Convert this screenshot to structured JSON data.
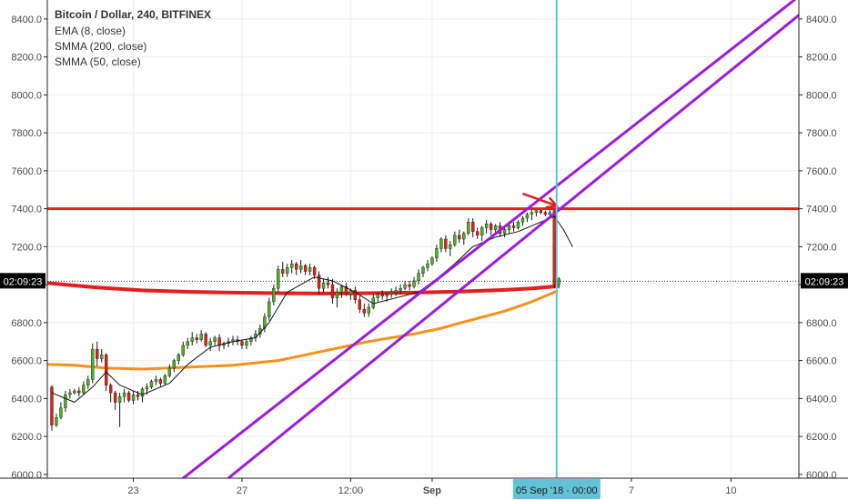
{
  "chart_data": {
    "type": "candlestick",
    "title": "Bitcoin / Dollar, 240, BITFINEX",
    "indicators": [
      "EMA (8, close)",
      "SMMA (200, close)",
      "SMMA (50, close)"
    ],
    "y_ticks": [
      6000,
      6200,
      6400,
      6600,
      6800,
      7000,
      7200,
      7400,
      7600,
      7800,
      8000,
      8200,
      8400
    ],
    "y_tick_labels": [
      "6000.0",
      "6200.0",
      "6400.0",
      "6600.0",
      "6800.0",
      "7000.0",
      "7200.0",
      "7400.0",
      "7600.0",
      "7800.0",
      "8000.0",
      "8200.0",
      "8400.0"
    ],
    "ylim": [
      5980,
      8500
    ],
    "x_ticks": [
      {
        "bar": 18,
        "label": "23"
      },
      {
        "bar": 42,
        "label": "27"
      },
      {
        "bar": 66,
        "label": "12:00"
      },
      {
        "bar": 84,
        "label": "Sep",
        "bold": true
      },
      {
        "bar": 128,
        "label": "7"
      },
      {
        "bar": 150,
        "label": "10"
      }
    ],
    "xlim": [
      -1,
      165
    ],
    "countdown_label": "02:09:23",
    "countdown_price": 7018,
    "cursor": {
      "bar": 111.5,
      "label": "05 Sep '18 · 00:00"
    },
    "horizontal_line": {
      "price": 7400,
      "color": "#ee1c1c"
    },
    "candles": [
      [
        6460,
        6470,
        6230,
        6260
      ],
      [
        6260,
        6320,
        6250,
        6300
      ],
      [
        6300,
        6380,
        6290,
        6350
      ],
      [
        6350,
        6440,
        6330,
        6420
      ],
      [
        6420,
        6450,
        6400,
        6430
      ],
      [
        6430,
        6450,
        6420,
        6440
      ],
      [
        6440,
        6460,
        6410,
        6430
      ],
      [
        6430,
        6490,
        6420,
        6470
      ],
      [
        6470,
        6520,
        6450,
        6500
      ],
      [
        6500,
        6690,
        6480,
        6660
      ],
      [
        6660,
        6700,
        6570,
        6610
      ],
      [
        6610,
        6660,
        6590,
        6630
      ],
      [
        6630,
        6640,
        6440,
        6470
      ],
      [
        6470,
        6480,
        6380,
        6430
      ],
      [
        6430,
        6440,
        6340,
        6380
      ],
      [
        6380,
        6430,
        6250,
        6410
      ],
      [
        6410,
        6450,
        6380,
        6430
      ],
      [
        6430,
        6440,
        6380,
        6390
      ],
      [
        6390,
        6440,
        6370,
        6420
      ],
      [
        6420,
        6440,
        6390,
        6410
      ],
      [
        6410,
        6460,
        6380,
        6450
      ],
      [
        6450,
        6480,
        6420,
        6460
      ],
      [
        6460,
        6500,
        6450,
        6490
      ],
      [
        6490,
        6520,
        6470,
        6500
      ],
      [
        6500,
        6510,
        6460,
        6480
      ],
      [
        6480,
        6530,
        6470,
        6520
      ],
      [
        6520,
        6580,
        6510,
        6560
      ],
      [
        6560,
        6610,
        6540,
        6600
      ],
      [
        6600,
        6640,
        6580,
        6630
      ],
      [
        6630,
        6700,
        6620,
        6680
      ],
      [
        6680,
        6720,
        6660,
        6700
      ],
      [
        6700,
        6750,
        6680,
        6720
      ],
      [
        6720,
        6740,
        6690,
        6710
      ],
      [
        6710,
        6760,
        6700,
        6740
      ],
      [
        6740,
        6750,
        6670,
        6680
      ],
      [
        6680,
        6720,
        6650,
        6700
      ],
      [
        6700,
        6730,
        6680,
        6720
      ],
      [
        6720,
        6740,
        6650,
        6680
      ],
      [
        6680,
        6700,
        6660,
        6690
      ],
      [
        6690,
        6720,
        6670,
        6700
      ],
      [
        6700,
        6730,
        6680,
        6710
      ],
      [
        6710,
        6730,
        6680,
        6700
      ],
      [
        6700,
        6710,
        6660,
        6680
      ],
      [
        6680,
        6710,
        6660,
        6700
      ],
      [
        6700,
        6730,
        6680,
        6720
      ],
      [
        6720,
        6760,
        6700,
        6740
      ],
      [
        6740,
        6790,
        6720,
        6770
      ],
      [
        6770,
        6850,
        6750,
        6830
      ],
      [
        6830,
        6930,
        6810,
        6910
      ],
      [
        6910,
        7000,
        6890,
        6980
      ],
      [
        6980,
        7100,
        6960,
        7080
      ],
      [
        7080,
        7120,
        7040,
        7060
      ],
      [
        7060,
        7110,
        7040,
        7090
      ],
      [
        7090,
        7130,
        7060,
        7110
      ],
      [
        7110,
        7120,
        7050,
        7080
      ],
      [
        7080,
        7130,
        7060,
        7100
      ],
      [
        7100,
        7110,
        7050,
        7070
      ],
      [
        7070,
        7110,
        7050,
        7090
      ],
      [
        7090,
        7100,
        7030,
        7050
      ],
      [
        7050,
        7070,
        6950,
        6980
      ],
      [
        6980,
        7030,
        6960,
        7010
      ],
      [
        7010,
        7040,
        6980,
        7000
      ],
      [
        7000,
        7030,
        6900,
        6930
      ],
      [
        6930,
        6980,
        6880,
        6960
      ],
      [
        6960,
        7000,
        6930,
        6990
      ],
      [
        6990,
        7010,
        6940,
        6950
      ],
      [
        6950,
        6980,
        6920,
        6970
      ],
      [
        6970,
        6990,
        6900,
        6920
      ],
      [
        6920,
        6940,
        6850,
        6870
      ],
      [
        6870,
        6900,
        6830,
        6850
      ],
      [
        6850,
        6900,
        6830,
        6880
      ],
      [
        6880,
        6950,
        6870,
        6930
      ],
      [
        6930,
        6960,
        6910,
        6950
      ],
      [
        6950,
        6970,
        6920,
        6940
      ],
      [
        6940,
        6960,
        6910,
        6950
      ],
      [
        6950,
        6980,
        6930,
        6960
      ],
      [
        6960,
        6990,
        6940,
        6970
      ],
      [
        6970,
        7000,
        6950,
        6980
      ],
      [
        6980,
        7020,
        6970,
        7000
      ],
      [
        7000,
        7020,
        6970,
        6990
      ],
      [
        6990,
        7040,
        6980,
        7020
      ],
      [
        7020,
        7080,
        7000,
        7060
      ],
      [
        7060,
        7100,
        7040,
        7090
      ],
      [
        7090,
        7130,
        7070,
        7110
      ],
      [
        7110,
        7150,
        7100,
        7140
      ],
      [
        7140,
        7210,
        7120,
        7190
      ],
      [
        7190,
        7250,
        7170,
        7240
      ],
      [
        7240,
        7260,
        7170,
        7190
      ],
      [
        7190,
        7230,
        7150,
        7210
      ],
      [
        7210,
        7280,
        7200,
        7260
      ],
      [
        7260,
        7290,
        7220,
        7240
      ],
      [
        7240,
        7280,
        7210,
        7270
      ],
      [
        7270,
        7350,
        7260,
        7330
      ],
      [
        7330,
        7350,
        7250,
        7280
      ],
      [
        7280,
        7300,
        7240,
        7260
      ],
      [
        7260,
        7310,
        7230,
        7300
      ],
      [
        7300,
        7340,
        7270,
        7320
      ],
      [
        7320,
        7330,
        7260,
        7290
      ],
      [
        7290,
        7320,
        7270,
        7310
      ],
      [
        7310,
        7330,
        7250,
        7270
      ],
      [
        7270,
        7300,
        7250,
        7290
      ],
      [
        7290,
        7320,
        7270,
        7310
      ],
      [
        7310,
        7330,
        7280,
        7300
      ],
      [
        7300,
        7340,
        7290,
        7330
      ],
      [
        7330,
        7360,
        7310,
        7350
      ],
      [
        7350,
        7380,
        7330,
        7370
      ],
      [
        7370,
        7400,
        7340,
        7380
      ],
      [
        7380,
        7400,
        7360,
        7390
      ],
      [
        7390,
        7400,
        7370,
        7380
      ],
      [
        7380,
        7390,
        7360,
        7370
      ],
      [
        7370,
        7395,
        7360,
        7380
      ],
      [
        7390,
        7395,
        6980,
        7000
      ],
      [
        7000,
        7040,
        6980,
        7030
      ]
    ],
    "ema8": [
      [
        0,
        6430
      ],
      [
        5,
        6380
      ],
      [
        9,
        6460
      ],
      [
        12,
        6540
      ],
      [
        15,
        6470
      ],
      [
        20,
        6420
      ],
      [
        26,
        6480
      ],
      [
        30,
        6580
      ],
      [
        35,
        6670
      ],
      [
        40,
        6700
      ],
      [
        45,
        6720
      ],
      [
        48,
        6800
      ],
      [
        52,
        6960
      ],
      [
        58,
        7040
      ],
      [
        62,
        7020
      ],
      [
        67,
        6960
      ],
      [
        71,
        6900
      ],
      [
        76,
        6930
      ],
      [
        81,
        6960
      ],
      [
        85,
        7030
      ],
      [
        89,
        7110
      ],
      [
        93,
        7200
      ],
      [
        98,
        7250
      ],
      [
        103,
        7280
      ],
      [
        108,
        7330
      ],
      [
        111,
        7360
      ],
      [
        113,
        7290
      ],
      [
        115,
        7200
      ]
    ],
    "smma200": [
      [
        -1,
        7008
      ],
      [
        10,
        6985
      ],
      [
        20,
        6970
      ],
      [
        30,
        6962
      ],
      [
        40,
        6958
      ],
      [
        50,
        6955
      ],
      [
        60,
        6953
      ],
      [
        70,
        6955
      ],
      [
        80,
        6958
      ],
      [
        90,
        6963
      ],
      [
        100,
        6972
      ],
      [
        106,
        6980
      ],
      [
        110,
        6988
      ],
      [
        111.5,
        6992
      ]
    ],
    "smma50": [
      [
        -1,
        6580
      ],
      [
        5,
        6575
      ],
      [
        12,
        6560
      ],
      [
        20,
        6555
      ],
      [
        30,
        6565
      ],
      [
        40,
        6575
      ],
      [
        50,
        6600
      ],
      [
        60,
        6650
      ],
      [
        70,
        6700
      ],
      [
        80,
        6740
      ],
      [
        86,
        6770
      ],
      [
        92,
        6810
      ],
      [
        100,
        6860
      ],
      [
        106,
        6910
      ],
      [
        110,
        6950
      ],
      [
        111.5,
        6965
      ]
    ],
    "channel_lines": [
      {
        "from": [
          29,
          5980
        ],
        "to": [
          164,
          8500
        ]
      },
      {
        "from": [
          39,
          5980
        ],
        "to": [
          165,
          8420
        ]
      }
    ],
    "arrow": {
      "from": [
        104,
        7480
      ],
      "to": [
        111.5,
        7415
      ]
    },
    "colors": {
      "up": "#4caf25",
      "down": "#e0201c",
      "wick": "#1a1a1a",
      "ema": "#111111",
      "smma200": "#e31e1e",
      "smma50": "#f5921b",
      "channel": "#9b1ddb",
      "cursor": "#62c2d6",
      "grid": "#eeeeee",
      "axis": "#222222"
    }
  }
}
